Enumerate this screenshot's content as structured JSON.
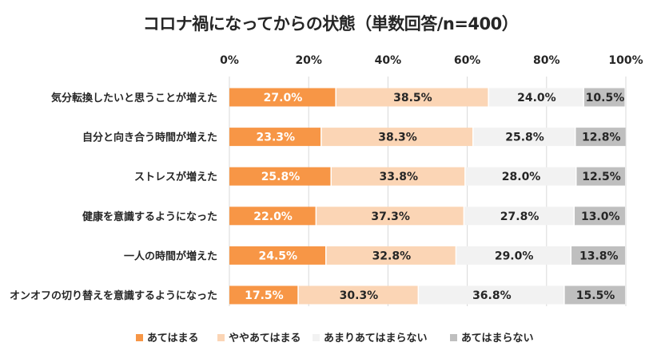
{
  "chart_data": {
    "type": "bar",
    "orientation": "horizontal",
    "stacked": true,
    "title": "コロナ禍になってからの状態（単数回答/n=400）",
    "xlim": [
      0,
      100
    ],
    "xticks": [
      0,
      20,
      40,
      60,
      80,
      100
    ],
    "xtick_labels": [
      "0%",
      "20%",
      "40%",
      "60%",
      "80%",
      "100%"
    ],
    "axis_position": "top",
    "categories": [
      "気分転換したいと思うことが増えた",
      "自分と向き合う時間が増えた",
      "ストレスが増えた",
      "健康を意識するようになった",
      "一人の時間が増えた",
      "オンオフの切り替えを意識するようになった"
    ],
    "series": [
      {
        "name": "あてはまる",
        "color": "#f79646",
        "label_color": "#ffffff",
        "values": [
          27.0,
          23.3,
          25.8,
          22.0,
          24.5,
          17.5
        ],
        "labels": [
          "27.0%",
          "23.3%",
          "25.8%",
          "22.0%",
          "24.5%",
          "17.5%"
        ]
      },
      {
        "name": "ややあてはまる",
        "color": "#fbd5b5",
        "label_color": "#262626",
        "values": [
          38.5,
          38.3,
          33.8,
          37.3,
          32.8,
          30.3
        ],
        "labels": [
          "38.5%",
          "38.3%",
          "33.8%",
          "37.3%",
          "32.8%",
          "30.3%"
        ]
      },
      {
        "name": "あまりあてはまらない",
        "color": "#f2f2f2",
        "label_color": "#262626",
        "values": [
          24.0,
          25.8,
          28.0,
          27.8,
          29.0,
          36.8
        ],
        "labels": [
          "24.0%",
          "25.8%",
          "28.0%",
          "27.8%",
          "29.0%",
          "36.8%"
        ]
      },
      {
        "name": "あてはまらない",
        "color": "#bfbfbf",
        "label_color": "#262626",
        "values": [
          10.5,
          12.8,
          12.5,
          13.0,
          13.8,
          15.5
        ],
        "labels": [
          "10.5%",
          "12.8%",
          "12.5%",
          "13.0%",
          "13.8%",
          "15.5%"
        ]
      }
    ],
    "legend_position": "bottom",
    "grid": true
  }
}
